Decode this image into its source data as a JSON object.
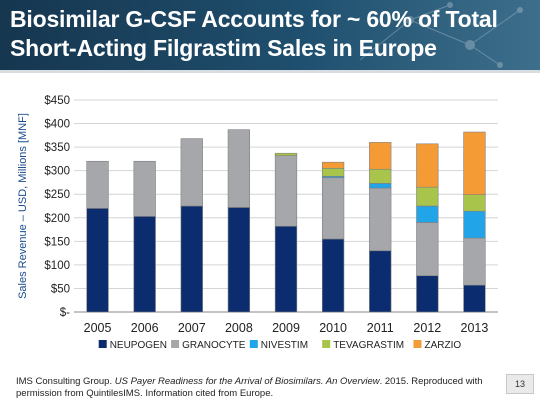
{
  "title": {
    "line1": "Biosimilar G-CSF Accounts for ~ 60% of Total",
    "line2": "Short-Acting Filgrastim Sales in Europe"
  },
  "chart_data": {
    "type": "bar",
    "stacked": true,
    "ylabel": "Sales Revenue – USD, Millions  [MNF]",
    "ylim": [
      0,
      450
    ],
    "yticks": [
      0,
      50,
      100,
      150,
      200,
      250,
      300,
      350,
      400,
      450
    ],
    "ytick_labels": [
      "$-",
      "$50",
      "$100",
      "$150",
      "$200",
      "$250",
      "$300",
      "$350",
      "$400",
      "$450"
    ],
    "grid": true,
    "legend": "bottom",
    "categories": [
      "2005",
      "2006",
      "2007",
      "2008",
      "2009",
      "2010",
      "2011",
      "2012",
      "2013"
    ],
    "series": [
      {
        "name": "NEUPOGEN",
        "color": "#0b2c6e",
        "values": [
          220,
          203,
          225,
          222,
          182,
          155,
          130,
          77,
          57
        ]
      },
      {
        "name": "GRANOCYTE",
        "color": "#a6a7ab",
        "values": [
          100,
          117,
          143,
          165,
          150,
          130,
          133,
          113,
          100
        ]
      },
      {
        "name": "NIVESTIM",
        "color": "#22a5e8",
        "values": [
          0,
          0,
          0,
          0,
          0,
          3,
          10,
          35,
          57
        ]
      },
      {
        "name": "TEVAGRASTIM",
        "color": "#a9c44a",
        "values": [
          0,
          0,
          0,
          0,
          5,
          17,
          30,
          40,
          35
        ]
      },
      {
        "name": "ZARZIO",
        "color": "#f59b36",
        "values": [
          0,
          0,
          0,
          0,
          0,
          13,
          57,
          92,
          133
        ]
      }
    ]
  },
  "footer": {
    "text_start": "IMS Consulting Group. ",
    "text_italic": "US Payer Readiness for the Arrival of Biosimilars. An Overview",
    "text_end": ". 2015. Reproduced with permission from QuintilesIMS. Information cited from Europe."
  },
  "page_number": "13"
}
